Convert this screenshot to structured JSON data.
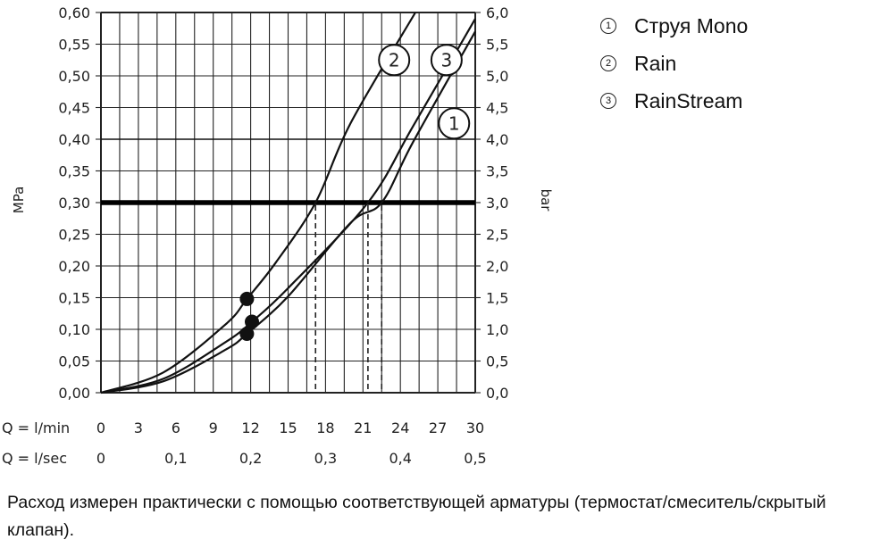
{
  "chart_data": {
    "type": "line",
    "ylabel_left": "MPa",
    "ylabel_right": "bar",
    "xlabel_flow_min": "Q = l/min",
    "xlabel_flow_sec": "Q = l/sec",
    "xlim": [
      0,
      30
    ],
    "ylim": [
      0,
      0.6
    ],
    "grid": true,
    "left_ticks": [
      "0,00",
      "0,05",
      "0,10",
      "0,15",
      "0,20",
      "0,25",
      "0,30",
      "0,35",
      "0,40",
      "0,45",
      "0,50",
      "0,55",
      "0,60"
    ],
    "right_ticks": [
      "0,0",
      "0,5",
      "1,0",
      "1,5",
      "2,0",
      "2,5",
      "3,0",
      "3,5",
      "4,0",
      "4,5",
      "5,0",
      "5,5",
      "6,0"
    ],
    "x_ticks_min": [
      {
        "x": 0,
        "label": "0"
      },
      {
        "x": 3,
        "label": "3"
      },
      {
        "x": 6,
        "label": "6"
      },
      {
        "x": 9,
        "label": "9"
      },
      {
        "x": 12,
        "label": "12"
      },
      {
        "x": 15,
        "label": "15"
      },
      {
        "x": 18,
        "label": "18"
      },
      {
        "x": 21,
        "label": "21"
      },
      {
        "x": 24,
        "label": "24"
      },
      {
        "x": 27,
        "label": "27"
      },
      {
        "x": 30,
        "label": "30"
      }
    ],
    "x_ticks_sec": [
      {
        "x": 0,
        "label": "0"
      },
      {
        "x": 6,
        "label": "0,1"
      },
      {
        "x": 12,
        "label": "0,2"
      },
      {
        "x": 18,
        "label": "0,3"
      },
      {
        "x": 24,
        "label": "0,4"
      },
      {
        "x": 30,
        "label": "0,5"
      }
    ],
    "reference_line": {
      "y": 0.3
    },
    "series": [
      {
        "name": "1",
        "points": [
          [
            0,
            0
          ],
          [
            5,
            0.018
          ],
          [
            10,
            0.068
          ],
          [
            11.7,
            0.093
          ],
          [
            15,
            0.152
          ],
          [
            20,
            0.268
          ],
          [
            22.5,
            0.3
          ],
          [
            25,
            0.395
          ],
          [
            30,
            0.57
          ]
        ],
        "dot": [
          11.7,
          0.093
        ],
        "drop_x": 22.5,
        "badge_at": [
          28.3,
          0.425
        ]
      },
      {
        "name": "2",
        "points": [
          [
            0,
            0
          ],
          [
            5,
            0.032
          ],
          [
            10,
            0.108
          ],
          [
            11.7,
            0.148
          ],
          [
            14,
            0.205
          ],
          [
            17.2,
            0.3
          ],
          [
            20,
            0.425
          ],
          [
            25.2,
            0.6
          ]
        ],
        "dot": [
          11.7,
          0.148
        ],
        "drop_x": 17.2,
        "badge_at": [
          23.5,
          0.525
        ]
      },
      {
        "name": "3",
        "points": [
          [
            0,
            0
          ],
          [
            5,
            0.022
          ],
          [
            10,
            0.08
          ],
          [
            12.1,
            0.112
          ],
          [
            15,
            0.165
          ],
          [
            21.4,
            0.3
          ],
          [
            25,
            0.42
          ],
          [
            30,
            0.59
          ]
        ],
        "dot": [
          12.1,
          0.112
        ],
        "drop_x": 21.4,
        "badge_at": [
          27.7,
          0.525
        ]
      }
    ]
  },
  "legend": [
    {
      "num": "1",
      "label": "Струя Mono"
    },
    {
      "num": "2",
      "label": "Rain"
    },
    {
      "num": "3",
      "label": "RainStream"
    }
  ],
  "note": "Расход измерен практически с помощью соответствующей арматуры (термостат/смеситель/скрытый клапан)."
}
